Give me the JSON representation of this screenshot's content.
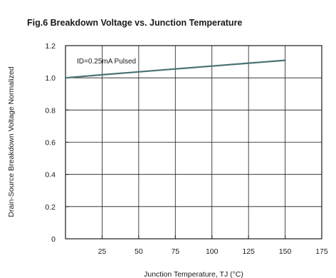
{
  "chart_data": {
    "type": "line",
    "title": "Fig.6  Breakdown Voltage vs. Junction Temperature",
    "xlabel": "Junction Temperature, TJ (°C)",
    "ylabel": "Drain-Source Breakdown Voltage Normalized",
    "xlim": [
      0,
      175
    ],
    "ylim": [
      0,
      1.2
    ],
    "x_ticks": [
      25,
      50,
      75,
      100,
      125,
      150,
      175
    ],
    "x_tick_labels": [
      "25",
      "50",
      "75",
      "100",
      "125",
      "150",
      "175"
    ],
    "y_ticks": [
      0,
      0.2,
      0.4,
      0.6,
      0.8,
      1.0,
      1.2
    ],
    "y_tick_labels": [
      "0",
      "0.2",
      "0.4",
      "0.6",
      "0.8",
      "1.0",
      "1.2"
    ],
    "grid": true,
    "annotation": "ID=0.25mA Pulsed",
    "series": [
      {
        "color": "#4a7272",
        "x": [
          0,
          25,
          50,
          75,
          100,
          125,
          150
        ],
        "y": [
          1.0,
          1.019,
          1.037,
          1.055,
          1.073,
          1.091,
          1.109
        ]
      }
    ]
  }
}
